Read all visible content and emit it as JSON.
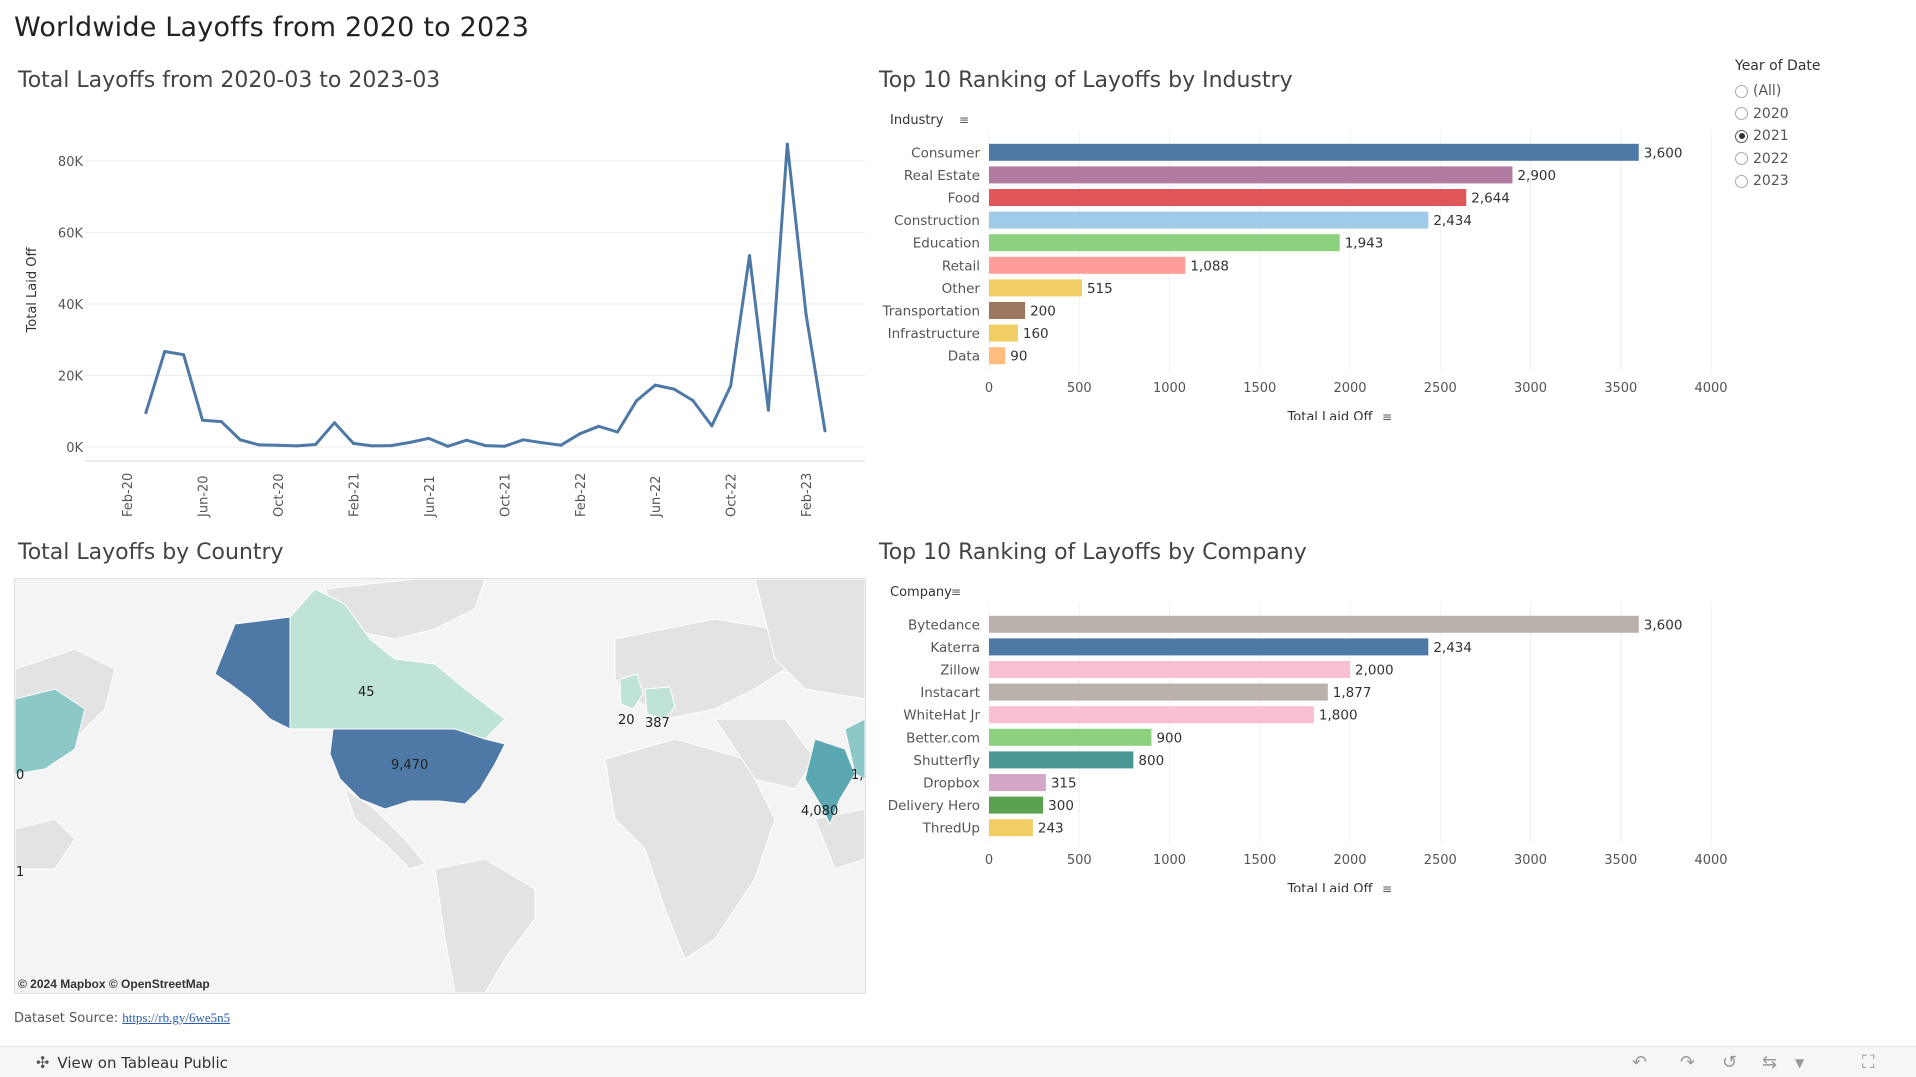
{
  "dashboard": {
    "title": "Worldwide Layoffs from 2020 to 2023"
  },
  "filter": {
    "title": "Year of Date",
    "options": [
      "(All)",
      "2020",
      "2021",
      "2022",
      "2023"
    ],
    "selected": "2021"
  },
  "panels": {
    "line_title": "Total Layoffs from 2020-03 to 2023-03",
    "industry_title": "Top 10 Ranking of Layoffs by Industry",
    "map_title": "Total Layoffs by Country",
    "company_title": "Top 10 Ranking of Layoffs by Company"
  },
  "map": {
    "attribution": "© 2024 Mapbox  © OpenStreetMap",
    "labels": [
      "45",
      "9,470",
      "20",
      "387",
      "4,080",
      "0",
      "1",
      "1,"
    ]
  },
  "source": {
    "label": "Dataset Source: ",
    "link": "https://rb.gy/6we5n5"
  },
  "footer": {
    "view_label": "View on Tableau Public"
  },
  "chart_data": [
    {
      "type": "line",
      "title": "Total Layoffs from 2020-03 to 2023-03",
      "ylabel": "Total Laid Off",
      "xlabel": "",
      "ylim": [
        0,
        85000
      ],
      "yticks": [
        "0K",
        "20K",
        "40K",
        "60K",
        "80K"
      ],
      "xticks": [
        "Feb-20",
        "Jun-20",
        "Oct-20",
        "Feb-21",
        "Jun-21",
        "Oct-21",
        "Feb-22",
        "Jun-22",
        "Oct-22",
        "Feb-23"
      ],
      "x": [
        "2020-03",
        "2020-04",
        "2020-05",
        "2020-06",
        "2020-07",
        "2020-08",
        "2020-09",
        "2020-10",
        "2020-11",
        "2020-12",
        "2021-01",
        "2021-02",
        "2021-03",
        "2021-04",
        "2021-05",
        "2021-06",
        "2021-07",
        "2021-08",
        "2021-09",
        "2021-10",
        "2021-11",
        "2021-12",
        "2022-01",
        "2022-02",
        "2022-03",
        "2022-04",
        "2022-05",
        "2022-06",
        "2022-07",
        "2022-08",
        "2022-09",
        "2022-10",
        "2022-11",
        "2022-12",
        "2023-01",
        "2023-02",
        "2023-03"
      ],
      "values": [
        9600,
        26700,
        25800,
        7500,
        7100,
        2000,
        600,
        500,
        300,
        700,
        6800,
        1000,
        300,
        400,
        1300,
        2400,
        200,
        1900,
        400,
        200,
        2000,
        1200,
        500,
        3700,
        5800,
        4200,
        12900,
        17300,
        16200,
        13000,
        5900,
        17100,
        53500,
        10300,
        84700,
        37000,
        4500
      ],
      "color": "#4e79a7",
      "grid": true
    },
    {
      "type": "bar",
      "orientation": "horizontal",
      "title": "Top 10 Ranking of Layoffs by Industry",
      "category_header": "Industry",
      "xlabel": "Total Laid Off",
      "xlim": [
        0,
        4000
      ],
      "xticks": [
        0,
        500,
        1000,
        1500,
        2000,
        2500,
        3000,
        3500,
        4000
      ],
      "categories": [
        "Consumer",
        "Real Estate",
        "Food",
        "Construction",
        "Education",
        "Retail",
        "Other",
        "Transportation",
        "Infrastructure",
        "Data"
      ],
      "values": [
        3600,
        2900,
        2644,
        2434,
        1943,
        1088,
        515,
        200,
        160,
        90
      ],
      "labels": [
        "3,600",
        "2,900",
        "2,644",
        "2,434",
        "1,943",
        "1,088",
        "515",
        "200",
        "160",
        "90"
      ],
      "colors": [
        "#4e79a7",
        "#b07aa1",
        "#e15759",
        "#a0cbe8",
        "#8cd17d",
        "#ff9d9a",
        "#f1ce63",
        "#9d7660",
        "#f1ce63",
        "#ffbe7d"
      ]
    },
    {
      "type": "bar",
      "orientation": "horizontal",
      "title": "Top 10 Ranking of Layoffs by Company",
      "category_header": "Company",
      "xlabel": "Total Laid Off",
      "xlim": [
        0,
        4000
      ],
      "xticks": [
        0,
        500,
        1000,
        1500,
        2000,
        2500,
        3000,
        3500,
        4000
      ],
      "categories": [
        "Bytedance",
        "Katerra",
        "Zillow",
        "Instacart",
        "WhiteHat Jr",
        "Better.com",
        "Shutterfly",
        "Dropbox",
        "Delivery Hero",
        "ThredUp"
      ],
      "values": [
        3600,
        2434,
        2000,
        1877,
        1800,
        900,
        800,
        315,
        300,
        243
      ],
      "labels": [
        "3,600",
        "2,434",
        "2,000",
        "1,877",
        "1,800",
        "900",
        "800",
        "315",
        "300",
        "243"
      ],
      "colors": [
        "#bab0ac",
        "#4e79a7",
        "#fabfd2",
        "#bab0ac",
        "#fabfd2",
        "#8cd17d",
        "#499894",
        "#d4a6c8",
        "#59a14f",
        "#f1ce63"
      ]
    }
  ]
}
